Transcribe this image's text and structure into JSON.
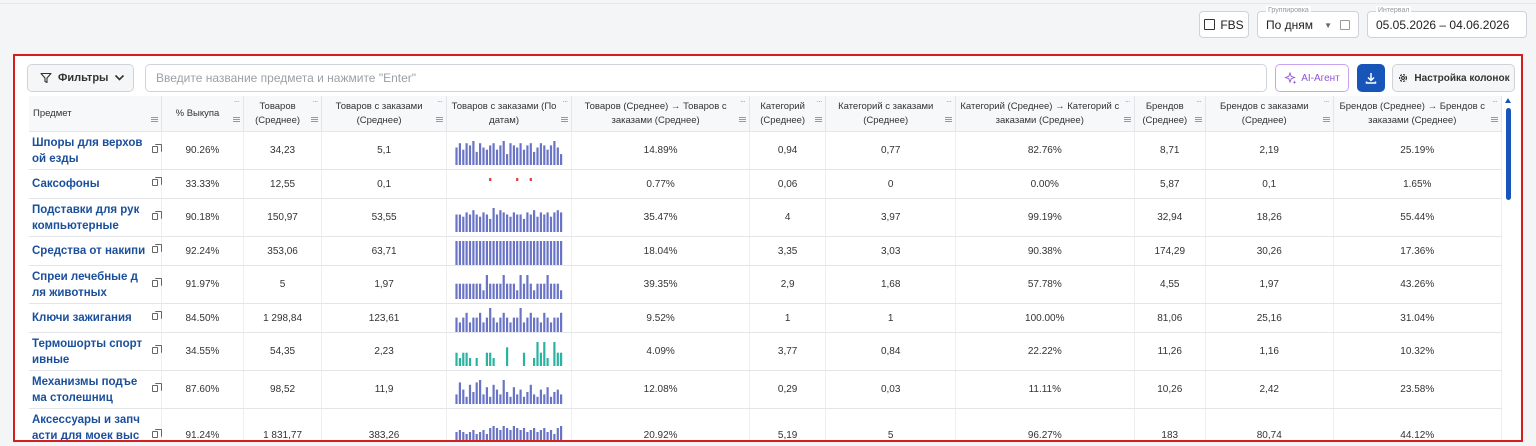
{
  "header": {
    "fbs_label": "FBS",
    "grouping_label": "Группировка",
    "grouping_value": "По дням",
    "interval_label": "Интервал",
    "interval_value": "05.05.2026 – 04.06.2026"
  },
  "toolbar": {
    "filters_label": "Фильтры",
    "search_placeholder": "Введите название предмета и нажмите \"Enter\"",
    "ai_label": "AI-Агент",
    "columns_label": "Настройка колонок"
  },
  "colors": {
    "accent": "#1756b8",
    "spark_blue": "#6a74c6",
    "spark_green": "#2bb3a1",
    "spark_red": "#e23b3b",
    "highlight": "#d61e1e"
  },
  "table": {
    "columns": [
      "Предмет",
      "% Выкупа",
      "Товаров (Среднее)",
      "Товаров с заказами (Среднее)",
      "Товаров с заказами (По датам)",
      "Товаров (Среднее) → Товаров с заказами (Среднее)",
      "Категорий (Среднее)",
      "Категорий с заказами (Среднее)",
      "Категорий (Среднее) → Категорий с заказами (Среднее)",
      "Брендов (Среднее)",
      "Брендов с заказами (Среднее)",
      "Брендов (Среднее) → Брендов с заказами (Среднее)"
    ],
    "rows": [
      {
        "name": "Шпоры для верховой езды",
        "cells": [
          "90.26%",
          "34,23",
          "5,1",
          "14.89%",
          "0,94",
          "0,77",
          "82.76%",
          "8,71",
          "2,19",
          "25.19%"
        ],
        "color": "blue",
        "spark": [
          8,
          10,
          7,
          10,
          9,
          11,
          6,
          10,
          8,
          7,
          9,
          10,
          7,
          9,
          11,
          5,
          10,
          9,
          8,
          10,
          7,
          9,
          10,
          6,
          8,
          10,
          9,
          7,
          9,
          11,
          8,
          5
        ]
      },
      {
        "name": "Саксофоны",
        "cells": [
          "33.33%",
          "12,55",
          "0,1",
          "0.77%",
          "0,06",
          "0",
          "0.00%",
          "5,87",
          "0,1",
          "1.65%"
        ],
        "color": "red",
        "spark": [
          0,
          0,
          0,
          0,
          0,
          0,
          0,
          0,
          0,
          0,
          1,
          0,
          0,
          0,
          0,
          0,
          0,
          0,
          1,
          0,
          0,
          0,
          1,
          0,
          0,
          0,
          0,
          0,
          0,
          0,
          0,
          0
        ]
      },
      {
        "name": "Подставки для рук компьютерные",
        "cells": [
          "90.18%",
          "150,97",
          "53,55",
          "35.47%",
          "4",
          "3,97",
          "99.19%",
          "32,94",
          "18,26",
          "55.44%"
        ],
        "color": "blue",
        "spark": [
          8,
          8,
          7,
          9,
          8,
          10,
          8,
          7,
          9,
          8,
          6,
          11,
          8,
          10,
          9,
          8,
          7,
          9,
          8,
          8,
          6,
          9,
          8,
          10,
          7,
          9,
          8,
          9,
          7,
          9,
          10,
          9
        ]
      },
      {
        "name": "Средства от накипи",
        "cells": [
          "92.24%",
          "353,06",
          "63,71",
          "18.04%",
          "3,35",
          "3,03",
          "90.38%",
          "174,29",
          "30,26",
          "17.36%"
        ],
        "color": "blue",
        "spark": [
          9,
          9,
          9,
          9,
          9,
          9,
          9,
          9,
          9,
          9,
          9,
          9,
          9,
          9,
          9,
          9,
          9,
          9,
          9,
          9,
          9,
          9,
          9,
          9,
          9,
          9,
          9,
          9,
          9,
          9,
          9,
          9
        ]
      },
      {
        "name": "Спреи лечебные для животных",
        "cells": [
          "91.97%",
          "5",
          "1,97",
          "39.35%",
          "2,9",
          "1,68",
          "57.78%",
          "4,55",
          "1,97",
          "43.26%"
        ],
        "color": "blue",
        "spark": [
          7,
          7,
          7,
          7,
          7,
          7,
          7,
          7,
          4,
          11,
          7,
          7,
          7,
          7,
          11,
          7,
          7,
          7,
          4,
          11,
          7,
          11,
          7,
          4,
          7,
          7,
          7,
          11,
          7,
          7,
          7,
          4
        ]
      },
      {
        "name": "Ключи зажигания",
        "cells": [
          "84.50%",
          "1 298,84",
          "123,61",
          "9.52%",
          "1",
          "1",
          "100.00%",
          "81,06",
          "25,16",
          "31.04%"
        ],
        "color": "blue",
        "spark": [
          3,
          2,
          3,
          4,
          2,
          3,
          3,
          4,
          2,
          3,
          5,
          3,
          2,
          3,
          4,
          3,
          2,
          3,
          3,
          5,
          2,
          3,
          4,
          3,
          3,
          2,
          4,
          3,
          2,
          3,
          3,
          4
        ]
      },
      {
        "name": "Термошорты спортивные",
        "cells": [
          "34.55%",
          "54,35",
          "2,23",
          "4.09%",
          "3,77",
          "0,84",
          "22.22%",
          "11,26",
          "1,16",
          "10.32%"
        ],
        "color": "green",
        "spark": [
          5,
          3,
          5,
          5,
          3,
          0,
          3,
          0,
          0,
          5,
          5,
          3,
          0,
          0,
          0,
          7,
          0,
          0,
          0,
          0,
          5,
          0,
          0,
          3,
          9,
          5,
          9,
          3,
          0,
          9,
          5,
          5
        ]
      },
      {
        "name": "Механизмы подъема столешниц",
        "cells": [
          "87.60%",
          "98,52",
          "11,9",
          "12.08%",
          "0,29",
          "0,03",
          "11.11%",
          "10,26",
          "2,42",
          "23.58%"
        ],
        "color": "blue",
        "spark": [
          4,
          9,
          6,
          3,
          8,
          5,
          9,
          10,
          4,
          7,
          3,
          8,
          6,
          4,
          10,
          5,
          3,
          7,
          4,
          6,
          3,
          5,
          8,
          4,
          3,
          6,
          4,
          7,
          3,
          5,
          6,
          4
        ]
      },
      {
        "name": "Аксессуары и запчасти для моек высокого давления",
        "cells": [
          "91.24%",
          "1 831,77",
          "383,26",
          "20.92%",
          "5,19",
          "5",
          "96.27%",
          "183",
          "80,74",
          "44.12%"
        ],
        "color": "blue",
        "spark": [
          9,
          10,
          9,
          8,
          9,
          10,
          8,
          9,
          10,
          8,
          11,
          12,
          11,
          10,
          12,
          11,
          10,
          12,
          11,
          10,
          11,
          9,
          10,
          11,
          9,
          10,
          11,
          9,
          10,
          8,
          11,
          12
        ]
      }
    ]
  }
}
